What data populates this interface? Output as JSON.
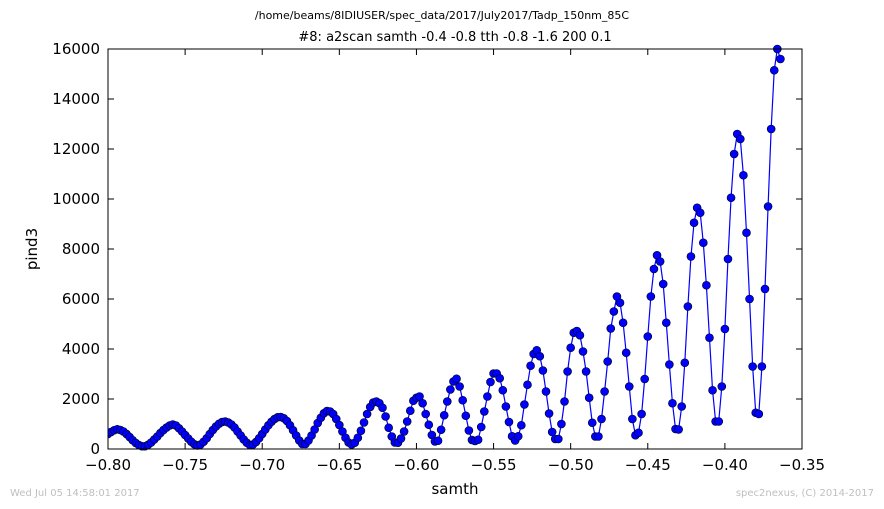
{
  "suptitle": "/home/beams/8IDIUSER/spec_data/2017/July2017/Tadp_150nm_85C",
  "footer": {
    "timestamp": "Wed Jul 05 14:58:01 2017",
    "credit": "spec2nexus, (C) 2014-2017"
  },
  "chart_data": {
    "type": "line",
    "title": "#8: a2scan  samth -0.4 -0.8  tth -0.8 -1.6  200 0.1",
    "xlabel": "samth",
    "ylabel": "pind3",
    "xlim": [
      -0.8,
      -0.35
    ],
    "ylim": [
      0,
      16000
    ],
    "xticks": [
      -0.8,
      -0.75,
      -0.7,
      -0.65,
      -0.6,
      -0.55,
      -0.5,
      -0.45,
      -0.4,
      -0.35
    ],
    "xtick_labels": [
      "−0.80",
      "−0.75",
      "−0.70",
      "−0.65",
      "−0.60",
      "−0.55",
      "−0.50",
      "−0.45",
      "−0.40",
      "−0.35"
    ],
    "yticks": [
      0,
      2000,
      4000,
      6000,
      8000,
      10000,
      12000,
      14000,
      16000
    ],
    "ytick_labels": [
      "0",
      "2000",
      "4000",
      "6000",
      "8000",
      "10000",
      "12000",
      "14000",
      "16000"
    ],
    "grid": false,
    "color": "#0000ff",
    "marker": "circle",
    "x_start": -0.8,
    "x_step": 0.002,
    "y": [
      600,
      680,
      750,
      790,
      760,
      700,
      600,
      480,
      350,
      240,
      160,
      110,
      110,
      170,
      260,
      380,
      500,
      640,
      760,
      860,
      940,
      980,
      940,
      830,
      700,
      560,
      420,
      290,
      190,
      140,
      180,
      290,
      430,
      600,
      760,
      900,
      1010,
      1080,
      1100,
      1060,
      980,
      860,
      700,
      540,
      380,
      250,
      160,
      180,
      280,
      430,
      600,
      780,
      950,
      1090,
      1200,
      1270,
      1280,
      1230,
      1120,
      950,
      750,
      540,
      340,
      200,
      200,
      340,
      540,
      780,
      1040,
      1250,
      1430,
      1520,
      1500,
      1400,
      1200,
      960,
      700,
      450,
      260,
      180,
      250,
      450,
      730,
      1060,
      1400,
      1680,
      1860,
      1900,
      1830,
      1650,
      1300,
      850,
      500,
      260,
      250,
      420,
      700,
      1100,
      1530,
      1930,
      2050,
      2100,
      1830,
      1400,
      970,
      560,
      300,
      330,
      770,
      1350,
      1900,
      2380,
      2700,
      2810,
      2500,
      1950,
      1330,
      740,
      360,
      320,
      370,
      880,
      1500,
      2100,
      2680,
      3020,
      3020,
      2830,
      2350,
      1700,
      1080,
      510,
      340,
      510,
      950,
      1780,
      2570,
      3330,
      3800,
      3950,
      3710,
      3140,
      2300,
      1420,
      680,
      400,
      400,
      1000,
      1900,
      3100,
      4050,
      4650,
      4720,
      4550,
      3900,
      3100,
      2050,
      1050,
      500,
      500,
      1200,
      2300,
      3500,
      4820,
      5500,
      6100,
      5850,
      5050,
      3850,
      2500,
      1200,
      550,
      650,
      1400,
      2800,
      4500,
      6100,
      7200,
      7750,
      7500,
      6600,
      5050,
      3380,
      1830,
      800,
      780,
      1700,
      3450,
      5700,
      7700,
      9050,
      9650,
      9450,
      8250,
      6550,
      4450,
      2350,
      1100,
      1100,
      2500,
      4800,
      7600,
      10050,
      11800,
      12600,
      12400,
      10950,
      8650,
      6000,
      3300,
      1450,
      1400,
      3300,
      6400,
      9700,
      12800,
      15150,
      16000,
      15600
    ]
  }
}
